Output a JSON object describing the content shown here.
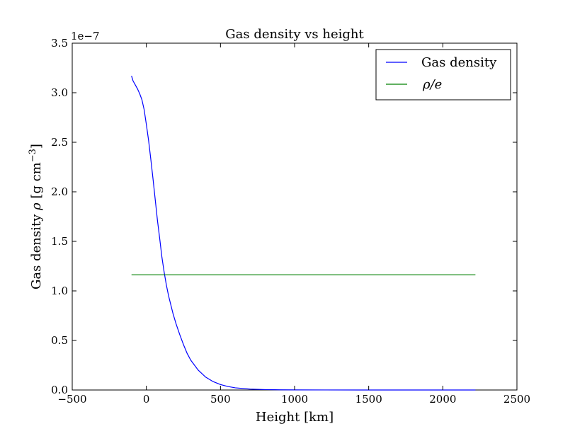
{
  "chart_data": {
    "type": "line",
    "title": "Gas density vs height",
    "xlabel": "Height [km]",
    "ylabel": {
      "prefix": "Gas density ",
      "rho": "ρ",
      "units_open": " [g cm",
      "exponent": "−3",
      "units_close": "]"
    },
    "y_offset_label": "1e−7",
    "xlim": [
      -500,
      2500
    ],
    "ylim": [
      0.0,
      3.5
    ],
    "y_scale_factor": 1e-07,
    "x_ticks": [
      -500,
      0,
      500,
      1000,
      1500,
      2000,
      2500
    ],
    "x_tick_labels": [
      "−500",
      "0",
      "500",
      "1000",
      "1500",
      "2000",
      "2500"
    ],
    "y_ticks": [
      0.0,
      0.5,
      1.0,
      1.5,
      2.0,
      2.5,
      3.0,
      3.5
    ],
    "y_tick_labels": [
      "0.0",
      "0.5",
      "1.0",
      "1.5",
      "2.0",
      "2.5",
      "3.0",
      "3.5"
    ],
    "grid": false,
    "legend_position": "top-right",
    "series": [
      {
        "name": "Gas density",
        "color": "#0000ff",
        "x": [
          -100,
          -90,
          -75,
          -60,
          -45,
          -30,
          -15,
          0,
          15,
          30,
          45,
          60,
          75,
          90,
          105,
          120,
          135,
          150,
          165,
          180,
          200,
          225,
          250,
          275,
          300,
          350,
          400,
          450,
          500,
          550,
          600,
          700,
          800,
          900,
          1000,
          1200,
          1500,
          1800,
          2000,
          2220
        ],
        "y": [
          3.17,
          3.12,
          3.08,
          3.04,
          2.99,
          2.93,
          2.83,
          2.68,
          2.52,
          2.33,
          2.13,
          1.92,
          1.71,
          1.53,
          1.34,
          1.19,
          1.06,
          0.95,
          0.86,
          0.77,
          0.67,
          0.56,
          0.46,
          0.37,
          0.3,
          0.2,
          0.13,
          0.085,
          0.055,
          0.035,
          0.022,
          0.009,
          0.004,
          0.002,
          0.001,
          0.0003,
          0.0001,
          0.0,
          0.0,
          0.0
        ]
      },
      {
        "name": "ρ/e",
        "color": "#008000",
        "x": [
          -100,
          2220
        ],
        "y": [
          1.163,
          1.163
        ]
      }
    ]
  }
}
